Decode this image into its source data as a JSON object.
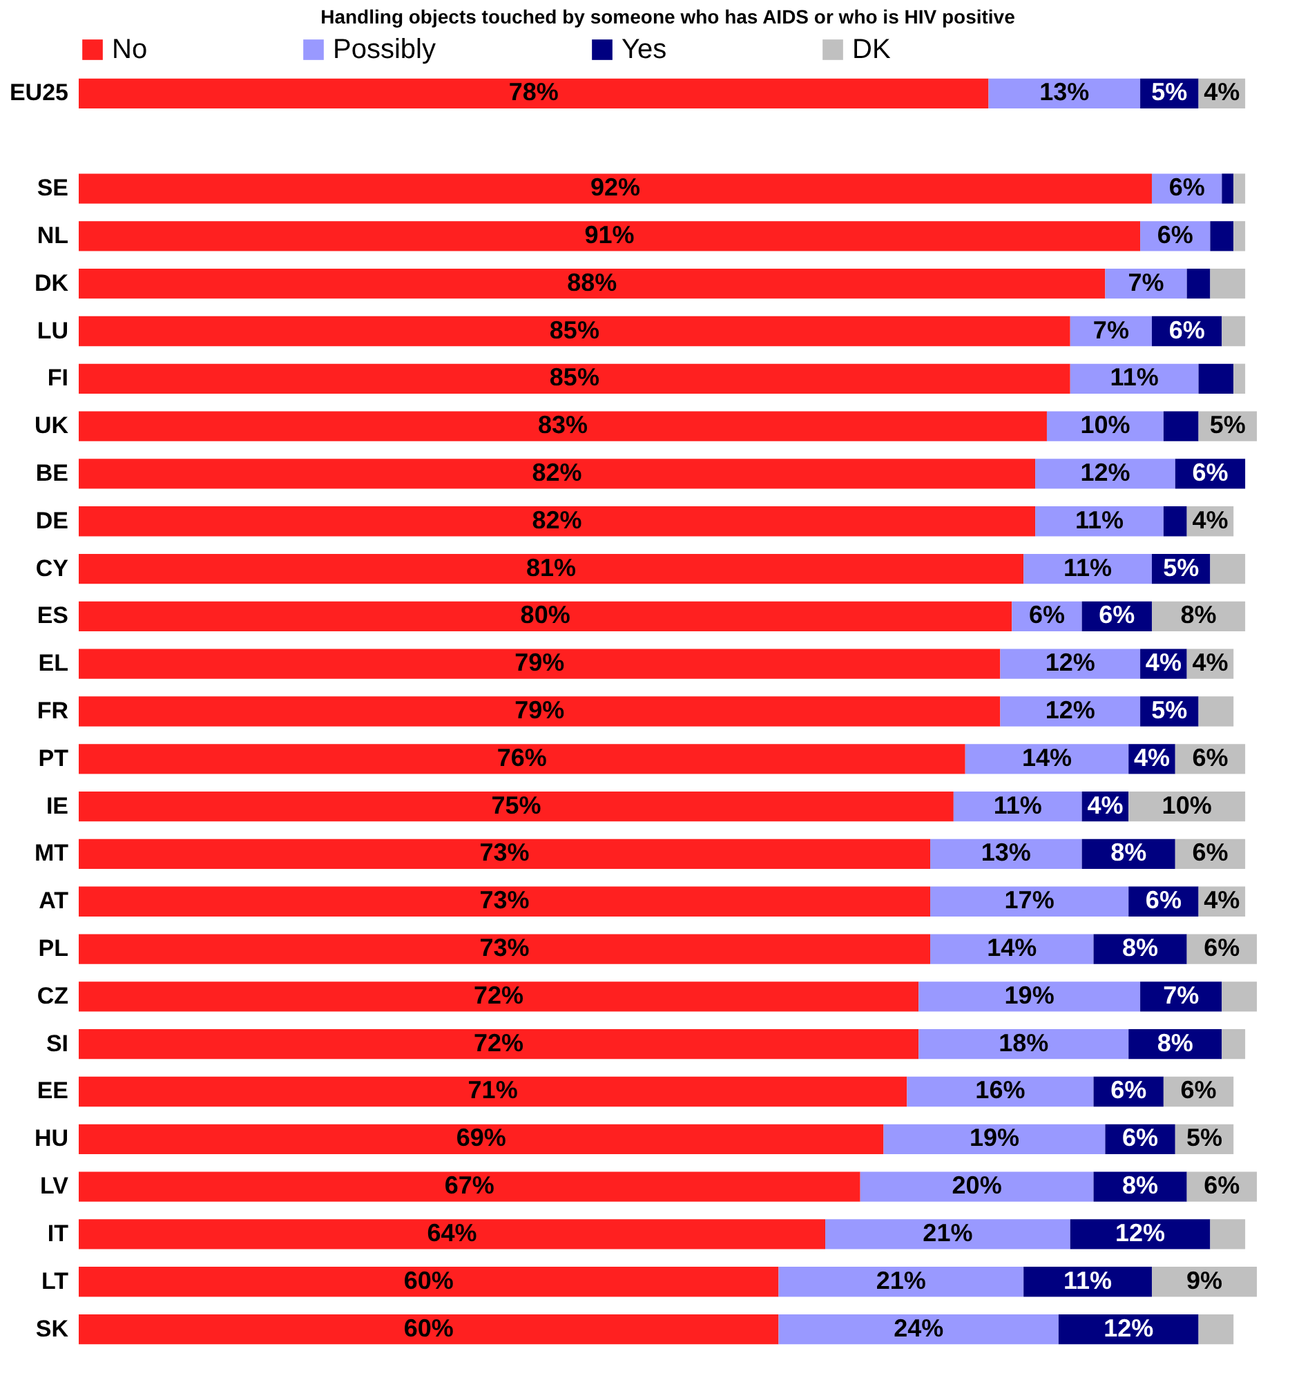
{
  "chart_data": {
    "type": "bar",
    "orientation": "horizontal",
    "stacked": true,
    "title": "Handling objects touched by someone who has AIDS or who is HIV positive",
    "categories": [
      "EU25",
      null,
      "SE",
      "NL",
      "DK",
      "LU",
      "FI",
      "UK",
      "BE",
      "DE",
      "CY",
      "ES",
      "EL",
      "FR",
      "PT",
      "IE",
      "MT",
      "AT",
      "PL",
      "CZ",
      "SI",
      "EE",
      "HU",
      "LV",
      "IT",
      "LT",
      "SK"
    ],
    "series": [
      {
        "name": "No",
        "color": "#ff2020",
        "values": [
          78,
          null,
          92,
          91,
          88,
          85,
          85,
          83,
          82,
          82,
          81,
          80,
          79,
          79,
          76,
          75,
          73,
          73,
          73,
          72,
          72,
          71,
          69,
          67,
          64,
          60,
          60
        ],
        "value_labels": [
          "78%",
          null,
          "92%",
          "91%",
          "88%",
          "85%",
          "85%",
          "83%",
          "82%",
          "82%",
          "81%",
          "80%",
          "79%",
          "79%",
          "76%",
          "75%",
          "73%",
          "73%",
          "73%",
          "72%",
          "72%",
          "71%",
          "69%",
          "67%",
          "64%",
          "60%",
          "60%"
        ]
      },
      {
        "name": "Possibly",
        "color": "#9999ff",
        "values": [
          13,
          null,
          6,
          6,
          7,
          7,
          11,
          10,
          12,
          11,
          11,
          6,
          12,
          12,
          14,
          11,
          13,
          17,
          14,
          19,
          18,
          16,
          19,
          20,
          21,
          21,
          24
        ],
        "value_labels": [
          "13%",
          null,
          "6%",
          "6%",
          "7%",
          "7%",
          "11%",
          "10%",
          "12%",
          "11%",
          "11%",
          "6%",
          "12%",
          "12%",
          "14%",
          "11%",
          "13%",
          "17%",
          "14%",
          "19%",
          "18%",
          "16%",
          "19%",
          "20%",
          "21%",
          "21%",
          "24%"
        ]
      },
      {
        "name": "Yes",
        "color": "#000080",
        "values": [
          5,
          null,
          1,
          2,
          2,
          6,
          3,
          3,
          6,
          2,
          5,
          6,
          4,
          5,
          4,
          4,
          8,
          6,
          8,
          7,
          8,
          6,
          6,
          8,
          12,
          11,
          12
        ],
        "value_labels": [
          "5%",
          null,
          null,
          null,
          null,
          "6%",
          null,
          null,
          "6%",
          null,
          "5%",
          "6%",
          "4%",
          "5%",
          "4%",
          "4%",
          "8%",
          "6%",
          "8%",
          "7%",
          "8%",
          "6%",
          "6%",
          "8%",
          "12%",
          "11%",
          "12%"
        ]
      },
      {
        "name": "DK",
        "color": "#c0c0c0",
        "values": [
          4,
          null,
          1,
          1,
          3,
          2,
          1,
          5,
          null,
          4,
          3,
          8,
          4,
          3,
          6,
          10,
          6,
          4,
          6,
          3,
          2,
          6,
          5,
          6,
          3,
          9,
          3
        ],
        "value_labels": [
          "4%",
          null,
          null,
          null,
          null,
          null,
          null,
          "5%",
          null,
          "4%",
          null,
          "8%",
          "4%",
          null,
          "6%",
          "10%",
          "6%",
          "4%",
          "6%",
          null,
          null,
          "6%",
          "5%",
          "6%",
          null,
          "9%",
          null
        ]
      }
    ],
    "xlim": [
      0,
      101
    ],
    "tick_labels": "y",
    "legend": "top"
  }
}
